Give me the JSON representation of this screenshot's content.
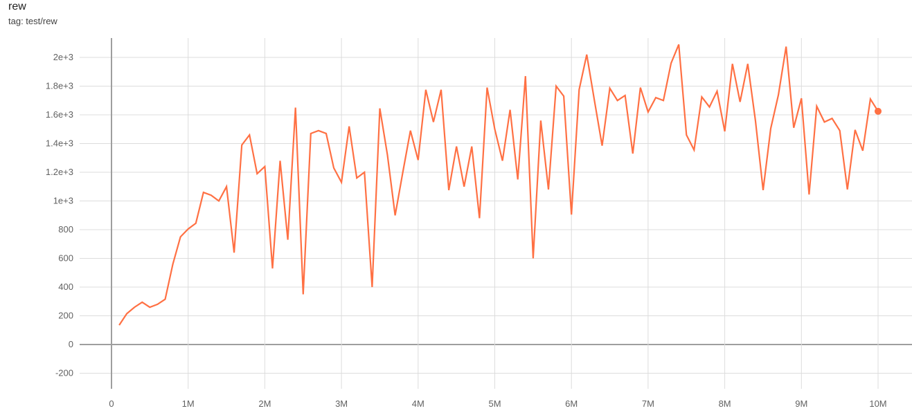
{
  "header": {
    "title": "rew",
    "tag": "tag: test/rew"
  },
  "chart_data": {
    "type": "line",
    "title": "rew",
    "xlabel": "",
    "ylabel": "",
    "xlim": [
      -0.4,
      10.4
    ],
    "ylim": [
      -300,
      2160
    ],
    "x_unit": "M",
    "grid": true,
    "line_color": "#ff7043",
    "x_ticks": [
      0,
      1,
      2,
      3,
      4,
      5,
      6,
      7,
      8,
      9,
      10
    ],
    "x_tick_labels": [
      "0",
      "1M",
      "2M",
      "3M",
      "4M",
      "5M",
      "6M",
      "7M",
      "8M",
      "9M",
      "10M"
    ],
    "y_ticks": [
      -200,
      0,
      200,
      400,
      600,
      800,
      1000,
      1200,
      1400,
      1600,
      1800,
      2000
    ],
    "y_tick_labels": [
      "-200",
      "0",
      "200",
      "400",
      "600",
      "800",
      "1e+3",
      "1.2e+3",
      "1.4e+3",
      "1.6e+3",
      "1.8e+3",
      "2e+3"
    ],
    "series": [
      {
        "x": [
          0.1,
          0.2,
          0.3,
          0.4,
          0.5,
          0.6,
          0.7,
          0.8,
          0.9,
          1.0,
          1.1,
          1.2,
          1.3,
          1.4,
          1.5,
          1.6,
          1.7,
          1.8,
          1.9,
          2.0,
          2.1,
          2.2,
          2.3,
          2.4,
          2.5,
          2.6,
          2.7,
          2.8,
          2.9,
          3.0,
          3.1,
          3.2,
          3.3,
          3.4,
          3.5,
          3.6,
          3.7,
          3.8,
          3.9,
          4.0,
          4.1,
          4.2,
          4.3,
          4.4,
          4.5,
          4.6,
          4.7,
          4.8,
          4.9,
          5.0,
          5.1,
          5.2,
          5.3,
          5.4,
          5.5,
          5.6,
          5.7,
          5.8,
          5.9,
          6.0,
          6.1,
          6.2,
          6.3,
          6.4,
          6.5,
          6.6,
          6.7,
          6.8,
          6.9,
          7.0,
          7.1,
          7.2,
          7.3,
          7.4,
          7.5,
          7.6,
          7.7,
          7.8,
          7.9,
          8.0,
          8.1,
          8.2,
          8.3,
          8.4,
          8.5,
          8.6,
          8.7,
          8.8,
          8.9,
          9.0,
          9.1,
          9.2,
          9.3,
          9.4,
          9.5,
          9.6,
          9.7,
          9.8,
          9.9,
          10.0
        ],
        "y": [
          135,
          215,
          260,
          295,
          260,
          280,
          315,
          560,
          750,
          805,
          845,
          1060,
          1040,
          1000,
          1100,
          640,
          1390,
          1460,
          1190,
          1240,
          530,
          1280,
          730,
          1650,
          350,
          1470,
          1490,
          1470,
          1230,
          1130,
          1520,
          1160,
          1200,
          400,
          1645,
          1320,
          900,
          1200,
          1490,
          1285,
          1775,
          1550,
          1775,
          1075,
          1380,
          1100,
          1380,
          880,
          1790,
          1500,
          1280,
          1635,
          1150,
          1870,
          600,
          1560,
          1080,
          1800,
          1730,
          905,
          1775,
          2020,
          1700,
          1385,
          1785,
          1700,
          1735,
          1330,
          1790,
          1620,
          1720,
          1700,
          1960,
          2090,
          1460,
          1355,
          1725,
          1655,
          1765,
          1485,
          1955,
          1690,
          1955,
          1560,
          1075,
          1505,
          1740,
          2075,
          1510,
          1715,
          1045,
          1660,
          1550,
          1575,
          1490,
          1080,
          1495,
          1350,
          1710,
          1625
        ]
      }
    ]
  }
}
